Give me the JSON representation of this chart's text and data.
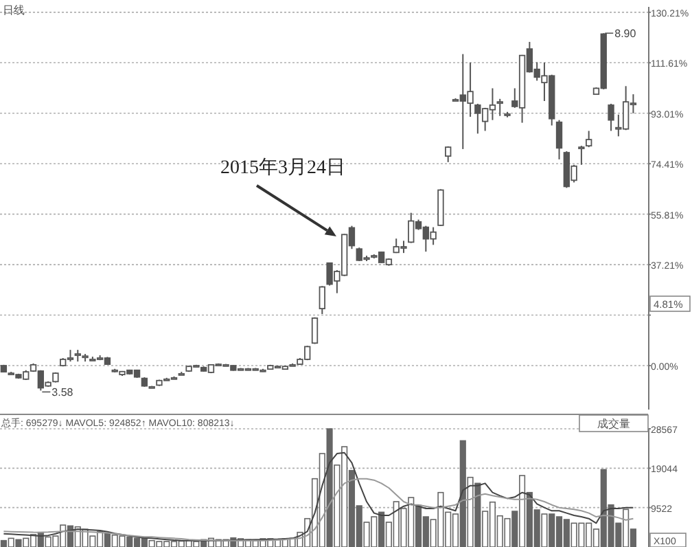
{
  "chart_data": [
    {
      "type": "candlestick",
      "categories": [
        null,
        null,
        null,
        null,
        null,
        null,
        null,
        null,
        null,
        null,
        null,
        null,
        null,
        null,
        null,
        null,
        null,
        null,
        null,
        null,
        null,
        null,
        null,
        null,
        null,
        null,
        null,
        null,
        null,
        null,
        null,
        null,
        null,
        null,
        null,
        null,
        null,
        null,
        null,
        null,
        null,
        null,
        null,
        null,
        null,
        null,
        null,
        null,
        null,
        null,
        null,
        null,
        null,
        null,
        null,
        null,
        null,
        null,
        null,
        null,
        null,
        null,
        null,
        null,
        null,
        null,
        null,
        null,
        null,
        null,
        null,
        null,
        null,
        null,
        null,
        null,
        null,
        null,
        null,
        null,
        null,
        null,
        null,
        null,
        null,
        null
      ],
      "ohlc": [
        [
          0,
          0.3,
          -2.5,
          -2.3
        ],
        [
          -2.8,
          -2.3,
          -3.2,
          -2.8
        ],
        [
          -3.3,
          -3,
          -4.8,
          -4.5
        ],
        [
          -5,
          -1.7,
          -5.3,
          -2.3
        ],
        [
          -2,
          0.8,
          -2.3,
          0.3
        ],
        [
          -2,
          -1.7,
          -9.2,
          -8.2
        ],
        [
          -7.5,
          -5.8,
          -7.8,
          -6.2
        ],
        [
          -5.9,
          -2.5,
          -6.2,
          -2.8
        ],
        [
          0,
          2.8,
          -0.3,
          2.3
        ],
        [
          2.8,
          5.8,
          1.5,
          2.8
        ],
        [
          3.8,
          5.8,
          1.5,
          4.3
        ],
        [
          3.5,
          4.3,
          1.5,
          3.5
        ],
        [
          2.3,
          3.3,
          1.8,
          2.3
        ],
        [
          2.8,
          3.8,
          2,
          2.8
        ],
        [
          2.8,
          3.2,
          0.3,
          0.5
        ],
        [
          -1.7,
          -1.2,
          -2.5,
          -1.7
        ],
        [
          -3.3,
          -2,
          -3.8,
          -2.2
        ],
        [
          -1.7,
          -1.5,
          -3.3,
          -3
        ],
        [
          -1.7,
          -1.5,
          -4.5,
          -4.2
        ],
        [
          -4.7,
          -4.3,
          -7.8,
          -7.5
        ],
        [
          -7.8,
          -7.5,
          -8.2,
          -7.8
        ],
        [
          -7.2,
          -5.2,
          -7.5,
          -5.5
        ],
        [
          -5,
          -4.5,
          -5.5,
          -5
        ],
        [
          -4.5,
          -4,
          -5,
          -4.5
        ],
        [
          -3,
          -2.3,
          -3.5,
          -3
        ],
        [
          -2,
          0,
          -2.3,
          -0.3
        ],
        [
          0,
          0.3,
          -0.5,
          0
        ],
        [
          -0.7,
          -0.3,
          -2.2,
          -2
        ],
        [
          -2.5,
          0.5,
          -2.8,
          0.3
        ],
        [
          0.5,
          0.8,
          0.2,
          0.5
        ],
        [
          0.3,
          0.6,
          0,
          0.3
        ],
        [
          0,
          0.2,
          -1.9,
          -1.7
        ],
        [
          -1.2,
          -0.9,
          -1.5,
          -1.2
        ],
        [
          -1.2,
          -0.9,
          -1.5,
          -1.2
        ],
        [
          -1.2,
          -0.9,
          -1.5,
          -1.2
        ],
        [
          -1.7,
          -1.2,
          -2.3,
          -1.7
        ],
        [
          -1.3,
          0.3,
          -1.5,
          0
        ],
        [
          -0.3,
          0,
          -0.6,
          -0.3
        ],
        [
          -1.3,
          -0.1,
          -1.5,
          -0.3
        ],
        [
          0.3,
          0.8,
          0,
          0.3
        ],
        [
          0.5,
          2.8,
          0.3,
          2.3
        ],
        [
          2.3,
          7.3,
          2,
          7
        ],
        [
          8.3,
          17.8,
          8,
          17.5
        ],
        [
          21,
          29.3,
          19,
          29
        ],
        [
          37.8,
          38,
          29.5,
          30
        ],
        [
          31.2,
          35.2,
          26.7,
          34.7
        ],
        [
          33.3,
          48.5,
          33,
          48.3
        ],
        [
          50.8,
          51.5,
          43,
          44.2
        ],
        [
          43,
          43.5,
          38.5,
          38.8
        ],
        [
          39.7,
          40.5,
          38.5,
          39.7
        ],
        [
          40.5,
          41,
          39.5,
          40.5
        ],
        [
          41.8,
          42,
          37.8,
          38
        ],
        [
          37.2,
          39.5,
          36.8,
          39.2
        ],
        [
          41.7,
          46.8,
          41.5,
          43.8
        ],
        [
          43.8,
          46,
          41.5,
          43.8
        ],
        [
          45.5,
          56.3,
          45.2,
          53.3
        ],
        [
          53,
          53.8,
          50,
          50.5
        ],
        [
          51,
          51.5,
          42,
          46.7
        ],
        [
          46.7,
          51,
          44.5,
          49.2
        ],
        [
          51.7,
          65,
          51.5,
          64.7
        ],
        [
          77.2,
          80.8,
          75,
          80.5
        ],
        [
          98,
          98.5,
          97.5,
          98
        ],
        [
          99.7,
          114.8,
          79.8,
          97.5
        ],
        [
          96.7,
          111.7,
          91.7,
          101
        ],
        [
          96,
          96.5,
          85.5,
          93
        ],
        [
          90,
          95,
          86.5,
          94.7
        ],
        [
          94.3,
          102.2,
          90.5,
          96
        ],
        [
          97.2,
          98.3,
          92,
          97.2
        ],
        [
          92.7,
          93.5,
          91.5,
          92.7
        ],
        [
          97.5,
          102.2,
          95,
          95.5
        ],
        [
          95,
          114.5,
          89.5,
          114.3
        ],
        [
          116.7,
          119.3,
          108,
          108.3
        ],
        [
          109.2,
          111.8,
          105,
          106.3
        ],
        [
          104.3,
          111.7,
          97.5,
          106.8
        ],
        [
          106.8,
          107.2,
          88.5,
          91
        ],
        [
          89.7,
          90.5,
          76,
          80.2
        ],
        [
          78.5,
          79,
          65.5,
          66
        ],
        [
          68.3,
          74,
          67.5,
          73.5
        ],
        [
          80.5,
          81,
          74,
          80.5
        ],
        [
          81,
          86.5,
          80.5,
          83.3
        ],
        [
          100,
          102.5,
          99.8,
          102.2
        ],
        [
          122.2,
          122.5,
          101.8,
          102.2
        ],
        [
          96,
          96.5,
          86.5,
          90.5
        ],
        [
          87.7,
          92.5,
          84.5,
          87.7
        ],
        [
          87.2,
          103,
          86.8,
          97.2
        ],
        [
          96.7,
          100,
          93,
          96.7
        ]
      ],
      "ylim": [
        -16.2,
        132.2
      ],
      "yticks": [
        {
          "value": 0,
          "label": "0.00%"
        },
        {
          "value": 18.61,
          "label": null
        },
        {
          "value": 37.21,
          "label": "37.21%"
        },
        {
          "value": 55.81,
          "label": "55.81%"
        },
        {
          "value": 74.41,
          "label": "74.41%"
        },
        {
          "value": 93.01,
          "label": "93.01%"
        },
        {
          "value": 111.61,
          "label": "111.61%"
        },
        {
          "value": 130.21,
          "label": "130.21%"
        }
      ],
      "grid": "y",
      "annotations": [
        "2015年3月24日",
        "3.58",
        "8.90",
        "日线",
        "4.81%"
      ]
    },
    {
      "type": "bar",
      "categories": [
        null,
        null,
        null,
        null,
        null,
        null,
        null,
        null,
        null,
        null,
        null,
        null,
        null,
        null,
        null,
        null,
        null,
        null,
        null,
        null,
        null,
        null,
        null,
        null,
        null,
        null,
        null,
        null,
        null,
        null,
        null,
        null,
        null,
        null,
        null,
        null,
        null,
        null,
        null,
        null,
        null,
        null,
        null,
        null,
        null,
        null,
        null,
        null,
        null,
        null,
        null,
        null,
        null,
        null,
        null,
        null,
        null,
        null,
        null,
        null,
        null,
        null,
        null,
        null,
        null,
        null,
        null,
        null,
        null,
        null,
        null,
        null,
        null,
        null,
        null,
        null,
        null,
        null,
        null,
        null,
        null,
        null,
        null,
        null,
        null,
        null
      ],
      "series": [
        {
          "type": "bar",
          "colors": [
            "#666666",
            "#ffffff",
            "#666666",
            "#ffffff",
            "#ffffff",
            "#666666",
            "#ffffff",
            "#ffffff",
            "#ffffff",
            "#666666",
            "#ffffff",
            "#ffffff",
            "#ffffff",
            "#ffffff",
            "#666666",
            "#ffffff",
            "#ffffff",
            "#666666",
            "#666666",
            "#666666",
            "#ffffff",
            "#ffffff",
            "#ffffff",
            "#ffffff",
            "#ffffff",
            "#ffffff",
            "#ffffff",
            "#666666",
            "#ffffff",
            "#ffffff",
            "#ffffff",
            "#666666",
            "#ffffff",
            "#ffffff",
            "#ffffff",
            "#ffffff",
            "#ffffff",
            "#ffffff",
            "#ffffff",
            "#ffffff",
            "#ffffff",
            "#ffffff",
            "#ffffff",
            "#ffffff",
            "#666666",
            "#ffffff",
            "#ffffff",
            "#666666",
            "#666666",
            "#ffffff",
            "#ffffff",
            "#666666",
            "#ffffff",
            "#ffffff",
            "#ffffff",
            "#ffffff",
            "#666666",
            "#666666",
            "#ffffff",
            "#ffffff",
            "#ffffff",
            "#ffffff",
            "#666666",
            "#ffffff",
            "#666666",
            "#ffffff",
            "#ffffff",
            "#ffffff",
            "#ffffff",
            "#666666",
            "#ffffff",
            "#666666",
            "#666666",
            "#ffffff",
            "#666666",
            "#666666",
            "#666666",
            "#ffffff",
            "#ffffff",
            "#ffffff",
            "#ffffff",
            "#666666",
            "#666666",
            "#666666",
            "#ffffff",
            "#666666"
          ],
          "values": [
            1550,
            2100,
            1770,
            2100,
            3000,
            3540,
            2430,
            2650,
            5300,
            5100,
            4870,
            4300,
            2650,
            3760,
            3430,
            2880,
            2650,
            2430,
            2100,
            2100,
            1550,
            1330,
            1330,
            1330,
            1440,
            1550,
            1330,
            1770,
            2100,
            1770,
            1770,
            2200,
            2000,
            1770,
            1550,
            2000,
            2000,
            1770,
            2000,
            2100,
            3540,
            6860,
            16500,
            22580,
            28560,
            19800,
            24240,
            18490,
            9960,
            5980,
            7300,
            8410,
            5980,
            10960,
            9300,
            11960,
            10070,
            7300,
            6640,
            13170,
            8410,
            7970,
            25680,
            16830,
            15390,
            8630,
            10850,
            7530,
            6860,
            8630,
            17270,
            13170,
            8970,
            7970,
            7970,
            7300,
            6640,
            5760,
            5760,
            5760,
            4320,
            18710,
            10180,
            5760,
            9080,
            4320
          ]
        },
        {
          "type": "line",
          "color": "#444444",
          "values": [
            3200,
            3100,
            3000,
            2900,
            2800,
            2650,
            2800,
            3200,
            3760,
            4000,
            4300,
            4200,
            4100,
            3980,
            3700,
            3300,
            3000,
            2700,
            2400,
            2200,
            2100,
            1950,
            1800,
            1650,
            1550,
            1550,
            1550,
            1550,
            1550,
            1550,
            1550,
            1650,
            1700,
            1750,
            1770,
            1800,
            1850,
            1900,
            2000,
            2100,
            2700,
            3760,
            8200,
            14800,
            20370,
            22580,
            22800,
            20370,
            15390,
            10960,
            8200,
            7640,
            7640,
            8750,
            9850,
            10400,
            9850,
            9300,
            9300,
            9850,
            9300,
            8750,
            13730,
            14830,
            14830,
            15390,
            13170,
            12400,
            11730,
            12070,
            13170,
            12620,
            10400,
            9520,
            8750,
            8750,
            8200,
            7640,
            7300,
            6860,
            5760,
            8750,
            9300,
            9300,
            9520,
            9520
          ]
        },
        {
          "type": "line",
          "color": "#999999",
          "values": [
            3760,
            3700,
            3650,
            3600,
            3550,
            3540,
            3600,
            3700,
            3760,
            3760,
            3760,
            3700,
            3600,
            3500,
            3400,
            3200,
            3000,
            2800,
            2600,
            2430,
            2430,
            2300,
            2200,
            2100,
            2000,
            1770,
            1700,
            1650,
            1600,
            1550,
            1550,
            1550,
            1550,
            1550,
            1550,
            1550,
            1600,
            1700,
            1770,
            2000,
            2100,
            2800,
            4300,
            7080,
            10400,
            13170,
            15390,
            16160,
            16500,
            16500,
            16160,
            15390,
            14280,
            12620,
            10960,
            10180,
            10180,
            9850,
            9520,
            9520,
            9850,
            10180,
            11290,
            11510,
            12400,
            12840,
            12400,
            12070,
            11730,
            11510,
            11510,
            11730,
            11510,
            10960,
            10180,
            9520,
            9300,
            9080,
            8750,
            8200,
            7300,
            7640,
            7530,
            7080,
            6530,
            6860
          ]
        }
      ],
      "ylim": [
        0,
        28567
      ],
      "yticks": [
        9522,
        19044,
        28567
      ],
      "grid": "y",
      "annotations": [
        "总手: 695279↓  MAVOL5: 924852↑  MAVOL10: 808213↓",
        "成交量",
        "X100"
      ]
    }
  ]
}
